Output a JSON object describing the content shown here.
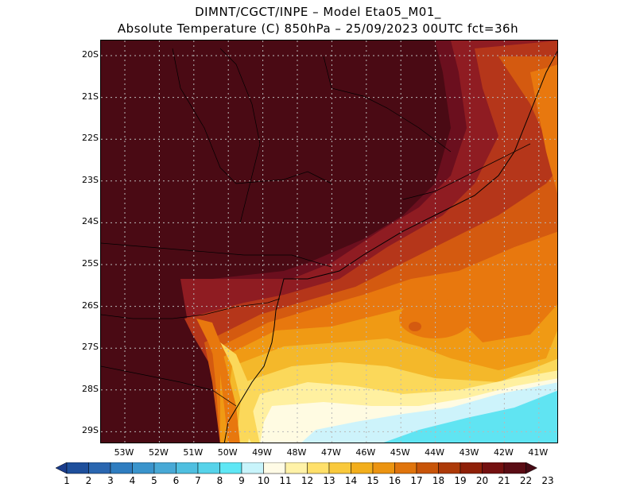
{
  "title_line1": "DIMNT/CGCT/INPE –  Model Eta05_M01_",
  "title_line2": "Absolute Temperature (C) 850hPa –  25/09/2023 00UTC fct=36h",
  "lat_labels": [
    "20S",
    "21S",
    "22S",
    "23S",
    "24S",
    "25S",
    "26S",
    "27S",
    "28S",
    "29S"
  ],
  "lon_labels": [
    "53W",
    "52W",
    "51W",
    "50W",
    "49W",
    "48W",
    "47W",
    "46W",
    "45W",
    "44W",
    "43W",
    "42W",
    "41W"
  ],
  "colorbar": {
    "labels": [
      "1",
      "2",
      "3",
      "4",
      "5",
      "6",
      "7",
      "8",
      "9",
      "10",
      "11",
      "12",
      "13",
      "14",
      "15",
      "16",
      "17",
      "18",
      "19",
      "20",
      "21",
      "22",
      "23"
    ],
    "colors": [
      "#1a3c8c",
      "#1e4f9c",
      "#2a66b0",
      "#2f7dc0",
      "#3a94cc",
      "#48a9d6",
      "#4fbfe0",
      "#56d3ea",
      "#5fe7f5",
      "#c8f4fb",
      "#fffbe6",
      "#fff2a8",
      "#ffe06a",
      "#f9c93c",
      "#f2ae1c",
      "#ec9410",
      "#e0740c",
      "#c85408",
      "#ad3a08",
      "#8f2008",
      "#741010",
      "#5a0c14",
      "#450a14"
    ]
  },
  "map_colors": {
    "dark_land": "#4a0a14",
    "maroon": "#6b0f1e",
    "crimson": "#8f1c22",
    "red_orange": "#b5361a",
    "orange_dark": "#d45a10",
    "orange": "#e8780e",
    "orange_light": "#f09a14",
    "amber": "#f4b82a",
    "yellow": "#fbd85a",
    "pale_yellow": "#fff0a0",
    "cream": "#fffbe2",
    "ice": "#cdf3fb",
    "cyan": "#60e4f2"
  }
}
